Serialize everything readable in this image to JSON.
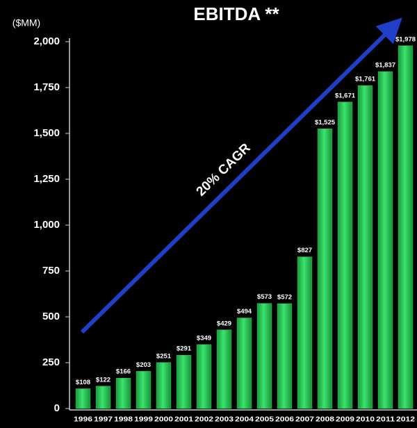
{
  "chart_data": {
    "type": "bar",
    "title": "EBITDA **",
    "y_axis_label": "($MM)",
    "annotation": "20% CAGR",
    "categories": [
      "1996",
      "1997",
      "1998",
      "1999",
      "2000",
      "2001",
      "2002",
      "2003",
      "2004",
      "2005",
      "2006",
      "2007",
      "2008",
      "2009",
      "2010",
      "2011",
      "2012"
    ],
    "values": [
      108,
      122,
      166,
      203,
      251,
      291,
      349,
      429,
      494,
      573,
      572,
      827,
      1525,
      1671,
      1761,
      1837,
      1978
    ],
    "value_labels": [
      "$108",
      "$122",
      "$166",
      "$203",
      "$251",
      "$291",
      "$349",
      "$429",
      "$494",
      "$573",
      "$572",
      "$827",
      "$1,525",
      "$1,671",
      "$1,761",
      "$1,837",
      "$1,978"
    ],
    "color": "#2fd35e",
    "ylim": [
      0,
      2000
    ],
    "yticks": [
      0,
      250,
      500,
      750,
      {
        "value": 1000,
        "label": "1,000"
      },
      {
        "value": 1250,
        "label": "1,250"
      },
      {
        "value": 1500,
        "label": "1,500"
      },
      {
        "value": 1750,
        "label": "1,750"
      },
      {
        "value": 2000,
        "label": "2,000"
      }
    ]
  }
}
